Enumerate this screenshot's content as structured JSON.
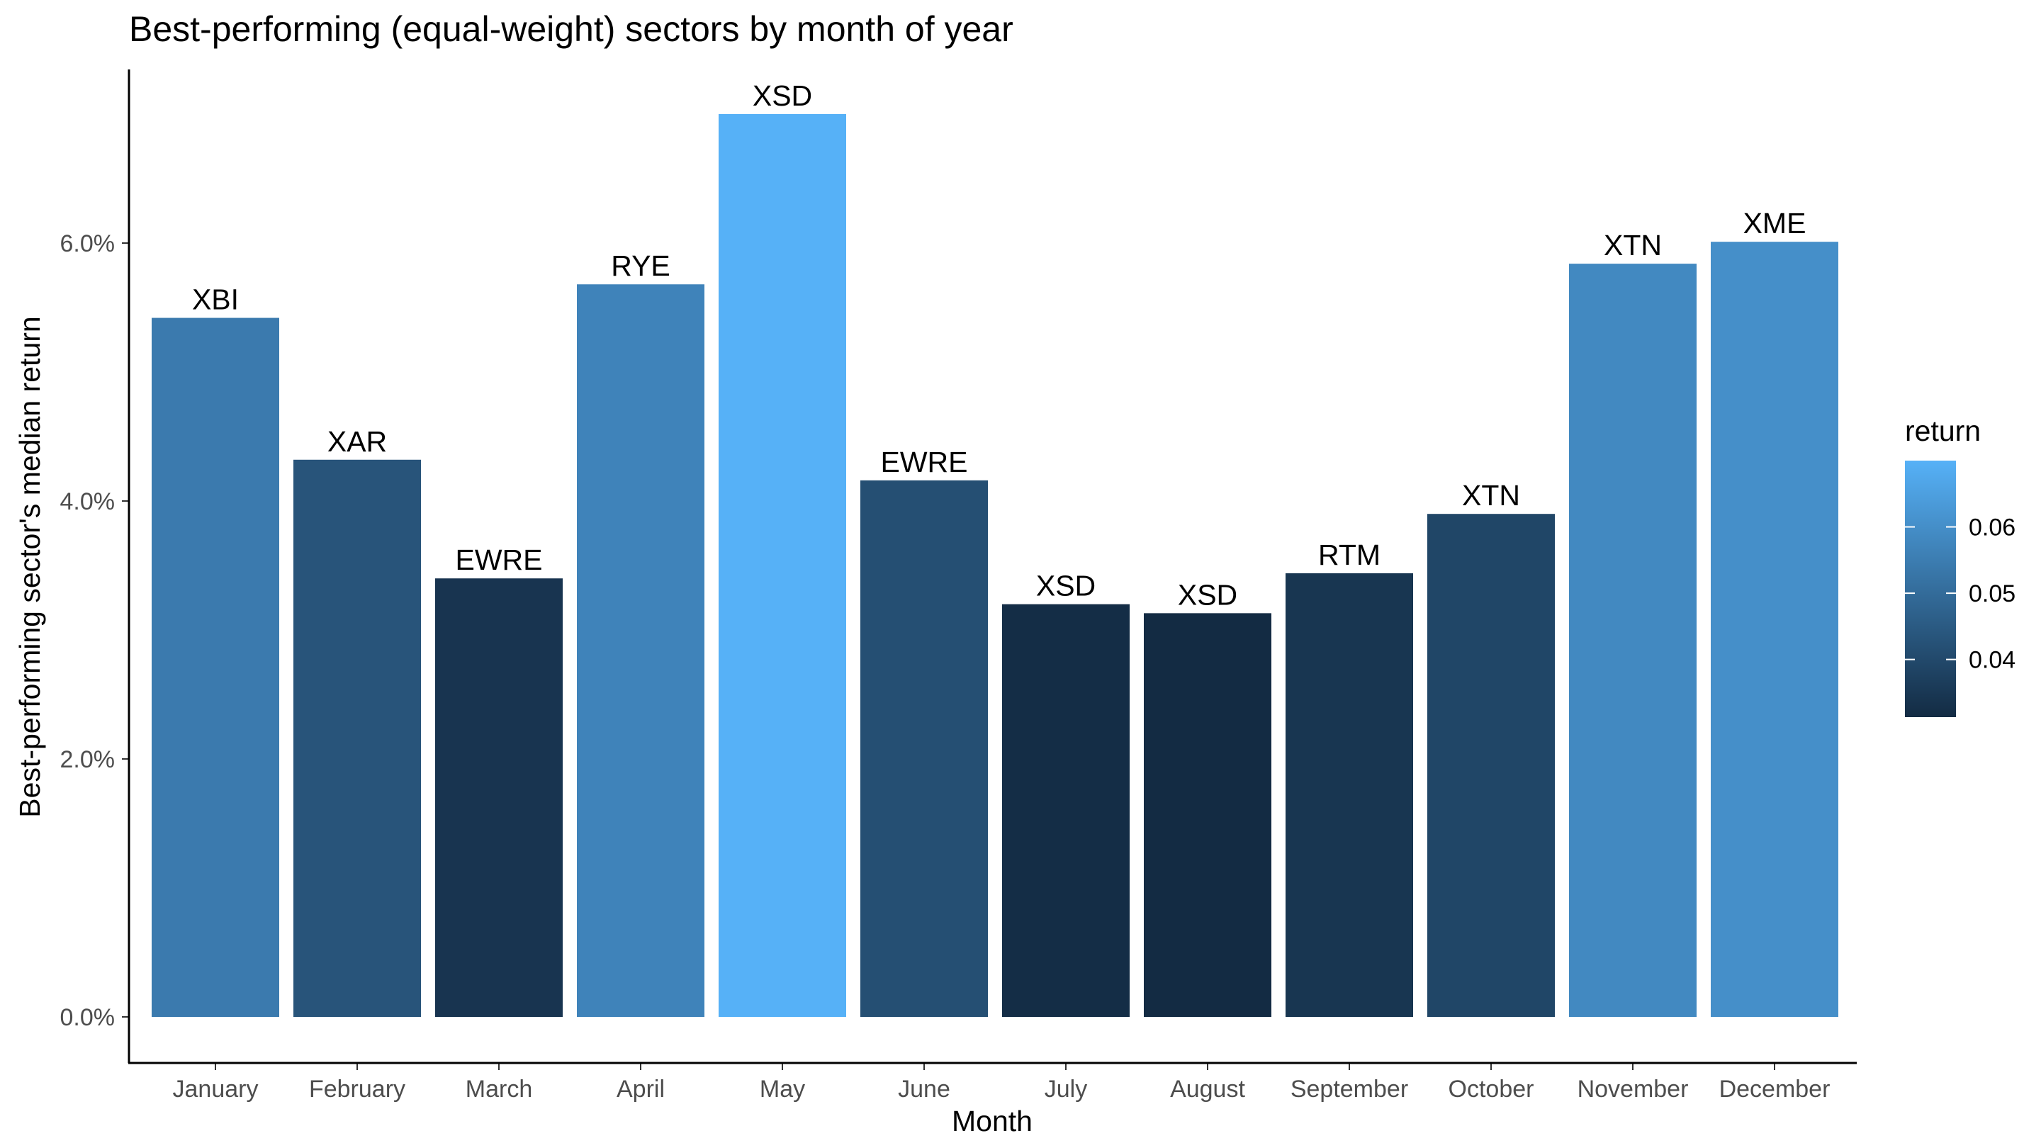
{
  "chart_data": {
    "type": "bar",
    "title": "Best-performing (equal-weight) sectors by month of year",
    "xlabel": "Month",
    "ylabel": "Best-performing sector's median return",
    "categories": [
      "January",
      "February",
      "March",
      "April",
      "May",
      "June",
      "July",
      "August",
      "September",
      "October",
      "November",
      "December"
    ],
    "values": [
      0.0542,
      0.0432,
      0.034,
      0.0568,
      0.07,
      0.0416,
      0.032,
      0.0313,
      0.0344,
      0.039,
      0.0584,
      0.0601
    ],
    "bar_labels": [
      "XBI",
      "XAR",
      "EWRE",
      "RYE",
      "XSD",
      "EWRE",
      "XSD",
      "XSD",
      "RTM",
      "XTN",
      "XTN",
      "XME"
    ],
    "ylim": [
      0,
      0.07
    ],
    "yticks": [
      0,
      0.02,
      0.04,
      0.06
    ],
    "ytick_labels": [
      "0.0%",
      "2.0%",
      "4.0%",
      "6.0%"
    ],
    "grid": false,
    "legend": {
      "title": "return",
      "position": "right",
      "ticks": [
        0.04,
        0.05,
        0.06
      ],
      "tick_labels": [
        "0.04",
        "0.05",
        "0.06"
      ],
      "color_low": "#132B43",
      "color_high": "#56B1F7",
      "range": [
        0.0313,
        0.07
      ]
    }
  }
}
